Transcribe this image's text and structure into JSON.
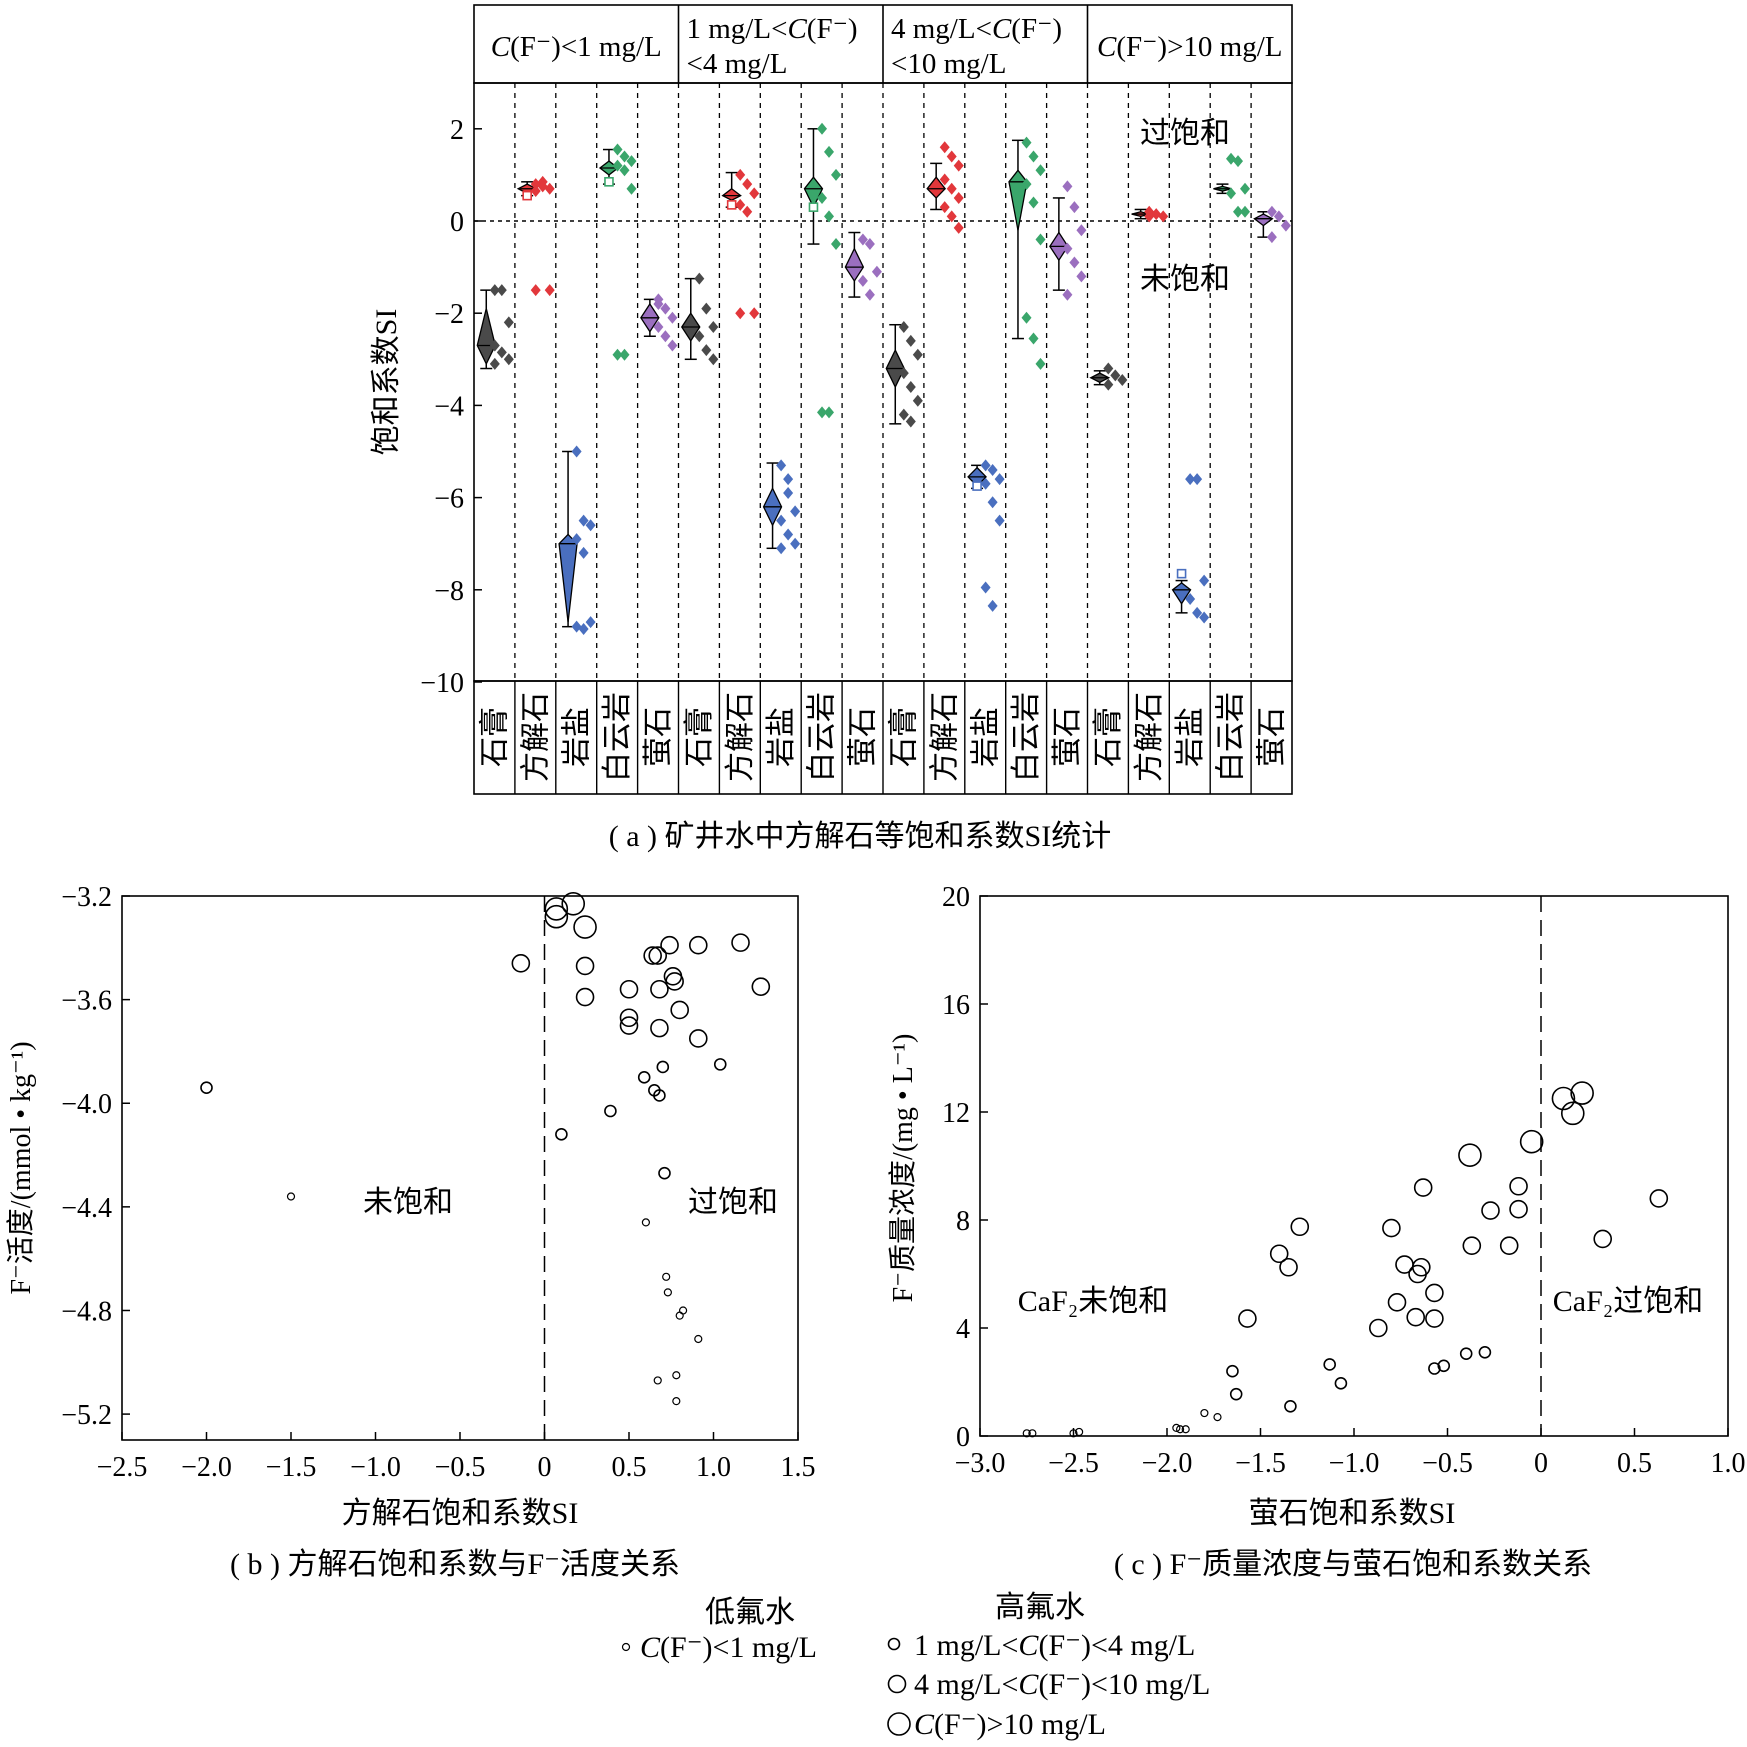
{
  "chart_data": [
    {
      "type": "scatter",
      "panel": "a",
      "caption": "( a ) 矿井水中方解石等饱和系数SI统计",
      "ylabel": "饱和系数SI",
      "ylim": [
        -10,
        3
      ],
      "yticks": [
        2,
        0,
        -2,
        -4,
        -6,
        -8,
        -10
      ],
      "tick_labels": [
        "2",
        "0",
        "−2",
        "−4",
        "−6",
        "−8",
        "−10"
      ],
      "reference_line": 0,
      "annotations": [
        "过饱和",
        "未饱和"
      ],
      "groups": [
        {
          "label_lines": [
            "C(F⁻)<1 mg/L"
          ]
        },
        {
          "label_lines": [
            "1 mg/L<C(F⁻)",
            "<4 mg/L"
          ]
        },
        {
          "label_lines": [
            "4 mg/L<C(F⁻)",
            "<10 mg/L"
          ]
        },
        {
          "label_lines": [
            "C(F⁻)>10 mg/L"
          ]
        }
      ],
      "minerals": [
        "石膏",
        "方解石",
        "岩盐",
        "白云岩",
        "萤石"
      ],
      "mineral_colors": [
        "#4a4a4a",
        "#e2373b",
        "#4a6fbf",
        "#3aa66b",
        "#9b6fbf"
      ],
      "series": [
        {
          "group": 0,
          "mineral": 0,
          "mean": -2.7,
          "range": [
            -3.2,
            -1.5
          ],
          "vmin": -3.1,
          "vmax": -1.9,
          "points": [
            -1.5,
            -1.5,
            -2.2,
            -2.7,
            -2.85,
            -3.0,
            -3.1
          ]
        },
        {
          "group": 0,
          "mineral": 1,
          "mean": 0.7,
          "range": [
            0.55,
            0.85
          ],
          "vmin": 0.6,
          "vmax": 0.8,
          "points": [
            0.8,
            0.85,
            0.7,
            0.65,
            0.75,
            -1.5,
            -1.5
          ],
          "marker": 0.55
        },
        {
          "group": 0,
          "mineral": 2,
          "mean": -7.0,
          "range": [
            -8.8,
            -5.0
          ],
          "vmin": -8.7,
          "vmax": -6.8,
          "points": [
            -5.0,
            -6.5,
            -6.6,
            -6.9,
            -7.2,
            -8.7,
            -8.8,
            -8.85
          ]
        },
        {
          "group": 0,
          "mineral": 3,
          "mean": 1.15,
          "range": [
            0.8,
            1.55
          ],
          "vmin": 1.0,
          "vmax": 1.3,
          "points": [
            1.55,
            1.4,
            1.3,
            1.2,
            1.1,
            0.7,
            -2.9,
            -2.9
          ],
          "marker": 0.85
        },
        {
          "group": 0,
          "mineral": 4,
          "mean": -2.1,
          "range": [
            -2.5,
            -1.7
          ],
          "vmin": -2.4,
          "vmax": -1.8,
          "points": [
            -1.7,
            -1.9,
            -2.1,
            -2.3,
            -2.5,
            -2.7,
            -1.8
          ]
        },
        {
          "group": 1,
          "mineral": 0,
          "mean": -2.3,
          "range": [
            -3.0,
            -1.25
          ],
          "vmin": -2.6,
          "vmax": -2.0,
          "points": [
            -1.25,
            -1.9,
            -2.3,
            -2.5,
            -2.8,
            -3.0
          ]
        },
        {
          "group": 1,
          "mineral": 1,
          "mean": 0.55,
          "range": [
            0.3,
            1.05
          ],
          "vmin": 0.45,
          "vmax": 0.7,
          "points": [
            1.0,
            0.8,
            0.6,
            0.35,
            0.2,
            -2.0,
            -2.0
          ],
          "marker": 0.35
        },
        {
          "group": 1,
          "mineral": 2,
          "mean": -6.2,
          "range": [
            -7.1,
            -5.25
          ],
          "vmin": -6.6,
          "vmax": -5.8,
          "points": [
            -5.3,
            -5.6,
            -6.3,
            -6.5,
            -6.8,
            -7.0,
            -7.1,
            -5.9
          ]
        },
        {
          "group": 1,
          "mineral": 3,
          "mean": 0.7,
          "range": [
            -0.5,
            2.0
          ],
          "vmin": 0.3,
          "vmax": 0.95,
          "points": [
            2.0,
            1.5,
            1.0,
            0.5,
            0.1,
            -0.5,
            -4.15,
            -4.15
          ],
          "marker": 0.3
        },
        {
          "group": 1,
          "mineral": 4,
          "mean": -1.0,
          "range": [
            -1.65,
            -0.25
          ],
          "vmin": -1.3,
          "vmax": -0.6,
          "points": [
            -0.4,
            -0.5,
            -1.1,
            -1.3,
            -1.6
          ]
        },
        {
          "group": 2,
          "mineral": 0,
          "mean": -3.2,
          "range": [
            -4.4,
            -2.25
          ],
          "vmin": -3.6,
          "vmax": -2.8,
          "points": [
            -2.3,
            -2.6,
            -2.9,
            -3.3,
            -3.6,
            -3.9,
            -4.2,
            -4.35
          ]
        },
        {
          "group": 2,
          "mineral": 1,
          "mean": 0.7,
          "range": [
            0.25,
            1.25
          ],
          "vmin": 0.5,
          "vmax": 0.95,
          "points": [
            1.6,
            1.4,
            1.2,
            0.9,
            0.7,
            0.5,
            0.3,
            0.1,
            -0.15
          ]
        },
        {
          "group": 2,
          "mineral": 2,
          "mean": -5.55,
          "range": [
            -5.8,
            -5.3
          ],
          "vmin": -5.75,
          "vmax": -5.35,
          "points": [
            -5.3,
            -5.4,
            -5.6,
            -5.7,
            -6.1,
            -6.5,
            -7.95,
            -8.35
          ],
          "marker": -5.75
        },
        {
          "group": 2,
          "mineral": 3,
          "mean": 0.85,
          "range": [
            -2.55,
            1.75
          ],
          "vmin": -0.2,
          "vmax": 1.1,
          "points": [
            1.7,
            1.4,
            1.1,
            0.8,
            0.4,
            -0.4,
            -2.1,
            -2.55,
            -3.1
          ]
        },
        {
          "group": 2,
          "mineral": 4,
          "mean": -0.55,
          "range": [
            -1.5,
            0.5
          ],
          "vmin": -0.85,
          "vmax": -0.25,
          "points": [
            0.75,
            0.3,
            -0.2,
            -0.6,
            -0.9,
            -1.2,
            -1.6
          ]
        },
        {
          "group": 3,
          "mineral": 0,
          "mean": -3.4,
          "range": [
            -3.55,
            -3.25
          ],
          "vmin": -3.5,
          "vmax": -3.3,
          "points": [
            -3.2,
            -3.35,
            -3.45,
            -3.55
          ]
        },
        {
          "group": 3,
          "mineral": 1,
          "mean": 0.15,
          "range": [
            0.05,
            0.25
          ],
          "vmin": 0.1,
          "vmax": 0.2,
          "points": [
            0.2,
            0.15,
            0.1,
            0.1
          ]
        },
        {
          "group": 3,
          "mineral": 2,
          "mean": -8.0,
          "range": [
            -8.5,
            -7.8
          ],
          "vmin": -8.3,
          "vmax": -7.85,
          "points": [
            -5.6,
            -5.6,
            -7.8,
            -8.2,
            -8.5,
            -8.6
          ],
          "marker": -7.65
        },
        {
          "group": 3,
          "mineral": 3,
          "mean": 0.7,
          "range": [
            0.6,
            0.8
          ],
          "vmin": 0.65,
          "vmax": 0.75,
          "points": [
            1.35,
            1.3,
            0.7,
            0.6,
            0.2,
            0.2
          ]
        },
        {
          "group": 3,
          "mineral": 4,
          "mean": 0.05,
          "range": [
            -0.35,
            0.2
          ],
          "vmin": -0.1,
          "vmax": 0.15,
          "points": [
            0.2,
            0.1,
            -0.1,
            -0.35
          ]
        }
      ]
    },
    {
      "type": "scatter",
      "panel": "b",
      "caption": "( b ) 方解石饱和系数与F⁻活度关系",
      "xlabel": "方解石饱和系数SI",
      "ylabel": "F⁻活度/(mmol • kg⁻¹)",
      "xlim": [
        -2.5,
        1.5
      ],
      "ylim": [
        -5.3,
        -3.2
      ],
      "xticks": [
        -2.5,
        -2.0,
        -1.5,
        -1.0,
        -0.5,
        0,
        0.5,
        1.0,
        1.5
      ],
      "xtick_labels": [
        "−2.5",
        "−2.0",
        "−1.5",
        "−1.0",
        "−0.5",
        "0",
        "0.5",
        "1.0",
        "1.5"
      ],
      "yticks": [
        -3.2,
        -3.6,
        -4.0,
        -4.4,
        -4.8,
        -5.2
      ],
      "ytick_labels": [
        "−3.2",
        "−3.6",
        "−4.0",
        "−4.4",
        "−4.8",
        "−5.2"
      ],
      "reference_line_x": 0,
      "annotations": [
        "未饱和",
        "过饱和"
      ],
      "points": [
        {
          "x": -2.0,
          "y": -3.94,
          "s": 1
        },
        {
          "x": -1.5,
          "y": -4.36,
          "s": 0
        },
        {
          "x": 0.6,
          "y": -4.46,
          "s": 0
        },
        {
          "x": 0.72,
          "y": -4.67,
          "s": 0
        },
        {
          "x": 0.73,
          "y": -4.73,
          "s": 0
        },
        {
          "x": 0.82,
          "y": -4.8,
          "s": 0
        },
        {
          "x": 0.8,
          "y": -4.82,
          "s": 0
        },
        {
          "x": 0.91,
          "y": -4.91,
          "s": 0
        },
        {
          "x": 0.67,
          "y": -5.07,
          "s": 0
        },
        {
          "x": 0.78,
          "y": -5.05,
          "s": 0
        },
        {
          "x": 0.78,
          "y": -5.15,
          "s": 0
        },
        {
          "x": 0.1,
          "y": -4.12,
          "s": 1
        },
        {
          "x": 0.39,
          "y": -4.03,
          "s": 1
        },
        {
          "x": 0.59,
          "y": -3.9,
          "s": 1
        },
        {
          "x": 0.65,
          "y": -3.95,
          "s": 1
        },
        {
          "x": 0.68,
          "y": -3.97,
          "s": 1
        },
        {
          "x": 0.7,
          "y": -3.86,
          "s": 1
        },
        {
          "x": 1.04,
          "y": -3.85,
          "s": 1
        },
        {
          "x": 0.71,
          "y": -4.27,
          "s": 1
        },
        {
          "x": -0.14,
          "y": -3.46,
          "s": 2
        },
        {
          "x": 0.24,
          "y": -3.47,
          "s": 2
        },
        {
          "x": 0.24,
          "y": -3.59,
          "s": 2
        },
        {
          "x": 0.5,
          "y": -3.56,
          "s": 2
        },
        {
          "x": 0.5,
          "y": -3.7,
          "s": 2
        },
        {
          "x": 0.5,
          "y": -3.67,
          "s": 2
        },
        {
          "x": 0.64,
          "y": -3.43,
          "s": 2
        },
        {
          "x": 0.67,
          "y": -3.43,
          "s": 2
        },
        {
          "x": 0.74,
          "y": -3.39,
          "s": 2
        },
        {
          "x": 0.68,
          "y": -3.56,
          "s": 2
        },
        {
          "x": 0.76,
          "y": -3.51,
          "s": 2
        },
        {
          "x": 0.77,
          "y": -3.53,
          "s": 2
        },
        {
          "x": 0.68,
          "y": -3.71,
          "s": 2
        },
        {
          "x": 0.8,
          "y": -3.64,
          "s": 2
        },
        {
          "x": 0.91,
          "y": -3.39,
          "s": 2
        },
        {
          "x": 0.91,
          "y": -3.75,
          "s": 2
        },
        {
          "x": 1.16,
          "y": -3.38,
          "s": 2
        },
        {
          "x": 1.28,
          "y": -3.55,
          "s": 2
        },
        {
          "x": 0.07,
          "y": -3.25,
          "s": 3
        },
        {
          "x": 0.07,
          "y": -3.28,
          "s": 3
        },
        {
          "x": 0.17,
          "y": -3.23,
          "s": 3
        },
        {
          "x": 0.24,
          "y": -3.32,
          "s": 3
        }
      ]
    },
    {
      "type": "scatter",
      "panel": "c",
      "caption": "( c ) F⁻质量浓度与萤石饱和系数关系",
      "xlabel": "萤石饱和系数SI",
      "ylabel": "F⁻质量浓度/(mg • L⁻¹)",
      "xlim": [
        -3.0,
        1.0
      ],
      "ylim": [
        0,
        20
      ],
      "xticks": [
        -3.0,
        -2.5,
        -2.0,
        -1.5,
        -1.0,
        -0.5,
        0,
        0.5,
        1.0
      ],
      "xtick_labels": [
        "−3.0",
        "−2.5",
        "−2.0",
        "−1.5",
        "−1.0",
        "−0.5",
        "0",
        "0.5",
        "1.0"
      ],
      "yticks": [
        0,
        4,
        8,
        12,
        16,
        20
      ],
      "ytick_labels": [
        "0",
        "4",
        "8",
        "12",
        "16",
        "20"
      ],
      "reference_line_x": 0,
      "annotations": [
        "CaF₂未饱和",
        "CaF₂过饱和"
      ],
      "points": [
        {
          "x": -2.75,
          "y": 0.1,
          "s": 0
        },
        {
          "x": -2.72,
          "y": 0.1,
          "s": 0
        },
        {
          "x": -2.5,
          "y": 0.1,
          "s": 0
        },
        {
          "x": -2.47,
          "y": 0.15,
          "s": 0
        },
        {
          "x": -1.95,
          "y": 0.3,
          "s": 0
        },
        {
          "x": -1.93,
          "y": 0.25,
          "s": 0
        },
        {
          "x": -1.9,
          "y": 0.25,
          "s": 0
        },
        {
          "x": -1.8,
          "y": 0.85,
          "s": 0
        },
        {
          "x": -1.73,
          "y": 0.7,
          "s": 0
        },
        {
          "x": -1.65,
          "y": 2.4,
          "s": 1
        },
        {
          "x": -1.63,
          "y": 1.55,
          "s": 1
        },
        {
          "x": -1.34,
          "y": 1.1,
          "s": 1
        },
        {
          "x": -1.13,
          "y": 2.65,
          "s": 1
        },
        {
          "x": -1.07,
          "y": 1.95,
          "s": 1
        },
        {
          "x": -0.57,
          "y": 2.5,
          "s": 1
        },
        {
          "x": -0.52,
          "y": 2.6,
          "s": 1
        },
        {
          "x": -0.4,
          "y": 3.05,
          "s": 1
        },
        {
          "x": -0.3,
          "y": 3.1,
          "s": 1
        },
        {
          "x": -1.57,
          "y": 4.35,
          "s": 2
        },
        {
          "x": -1.4,
          "y": 6.75,
          "s": 2
        },
        {
          "x": -1.35,
          "y": 6.25,
          "s": 2
        },
        {
          "x": -1.29,
          "y": 7.75,
          "s": 2
        },
        {
          "x": -0.87,
          "y": 4.0,
          "s": 2
        },
        {
          "x": -0.8,
          "y": 7.7,
          "s": 2
        },
        {
          "x": -0.77,
          "y": 4.95,
          "s": 2
        },
        {
          "x": -0.73,
          "y": 6.35,
          "s": 2
        },
        {
          "x": -0.67,
          "y": 4.4,
          "s": 2
        },
        {
          "x": -0.66,
          "y": 6.0,
          "s": 2
        },
        {
          "x": -0.64,
          "y": 6.25,
          "s": 2
        },
        {
          "x": -0.63,
          "y": 9.2,
          "s": 2
        },
        {
          "x": -0.57,
          "y": 5.3,
          "s": 2
        },
        {
          "x": -0.57,
          "y": 4.35,
          "s": 2
        },
        {
          "x": -0.37,
          "y": 7.05,
          "s": 2
        },
        {
          "x": -0.27,
          "y": 8.35,
          "s": 2
        },
        {
          "x": -0.17,
          "y": 7.05,
          "s": 2
        },
        {
          "x": -0.12,
          "y": 9.25,
          "s": 2
        },
        {
          "x": -0.12,
          "y": 8.4,
          "s": 2
        },
        {
          "x": 0.33,
          "y": 7.3,
          "s": 2
        },
        {
          "x": 0.63,
          "y": 8.8,
          "s": 2
        },
        {
          "x": -0.38,
          "y": 10.4,
          "s": 3
        },
        {
          "x": -0.05,
          "y": 10.9,
          "s": 3
        },
        {
          "x": 0.12,
          "y": 12.5,
          "s": 3
        },
        {
          "x": 0.17,
          "y": 11.95,
          "s": 3
        },
        {
          "x": 0.22,
          "y": 12.7,
          "s": 3
        }
      ]
    }
  ],
  "legend": {
    "low_title": "低氟水",
    "high_title": "高氟水",
    "items": [
      {
        "label": "C(F⁻)<1 mg/L"
      },
      {
        "label": "1 mg/L<C(F⁻)<4 mg/L"
      },
      {
        "label": "4 mg/L<C(F⁻)<10 mg/L"
      },
      {
        "label": "C(F⁻)>10 mg/L"
      }
    ]
  }
}
